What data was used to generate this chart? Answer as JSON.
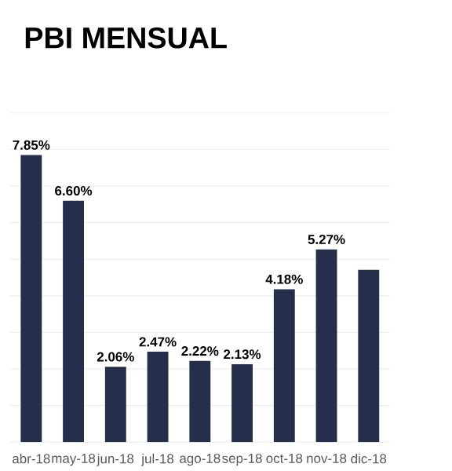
{
  "chart_data": {
    "type": "bar",
    "title": "PBI MENSUAL",
    "categories": [
      "abr-18",
      "may-18",
      "jun-18",
      "jul-18",
      "ago-18",
      "sep-18",
      "oct-18",
      "nov-18",
      "dic-18"
    ],
    "values": [
      7.85,
      6.6,
      2.06,
      2.47,
      2.22,
      2.13,
      4.18,
      5.27,
      4.71
    ],
    "value_labels": [
      "7.85%",
      "6.60%",
      "2.06%",
      "2.47%",
      "2.22%",
      "2.13%",
      "4.18%",
      "5.27%",
      null
    ],
    "color": "#252e4a",
    "ylim": [
      0,
      9
    ],
    "yticks": [
      {
        "value": 0,
        "label": null
      },
      {
        "value": 1,
        "label": null
      },
      {
        "value": 2,
        "label": null
      },
      {
        "value": 3,
        "label": null
      },
      {
        "value": 4,
        "label": null
      },
      {
        "value": 5,
        "label": null
      },
      {
        "value": 6,
        "label": null
      },
      {
        "value": 7,
        "label": null
      },
      {
        "value": 8,
        "label": null
      },
      {
        "value": 9,
        "label": null
      }
    ],
    "grid": "y",
    "tick_labels": "x"
  }
}
